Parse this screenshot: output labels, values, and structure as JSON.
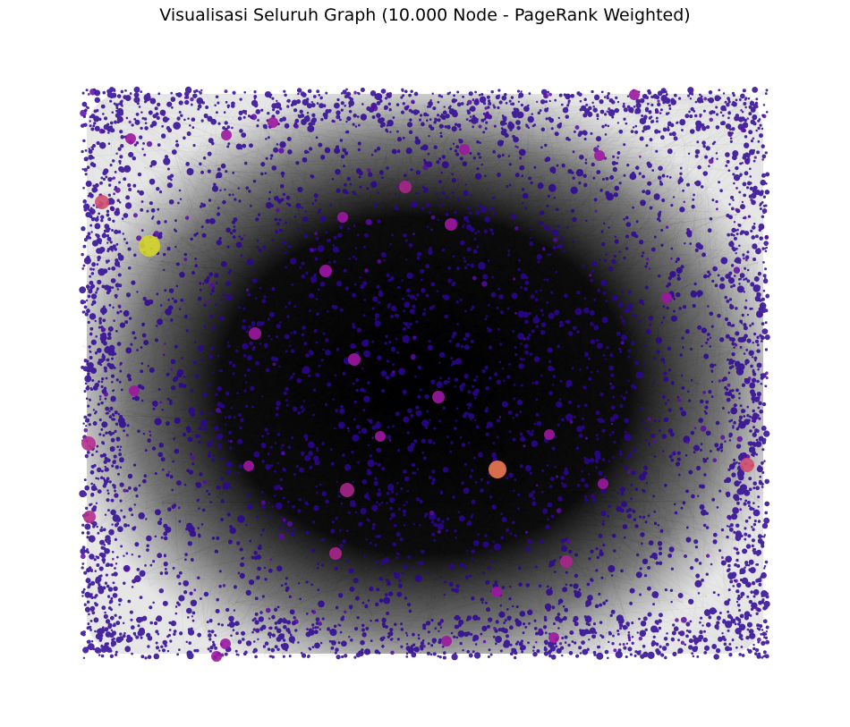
{
  "title": "Visualisasi Seluruh Graph (10.000 Node - PageRank Weighted)",
  "graph": {
    "node_count": 10000,
    "size_and_color_encoding": "PageRank",
    "colormap": "plasma",
    "colors": {
      "edge": "#000000",
      "low_rank": "#2c0594",
      "mid_rank": "#9c179e",
      "high_rank": "#ed7953",
      "highest_rank": "#d4d42a"
    }
  }
}
